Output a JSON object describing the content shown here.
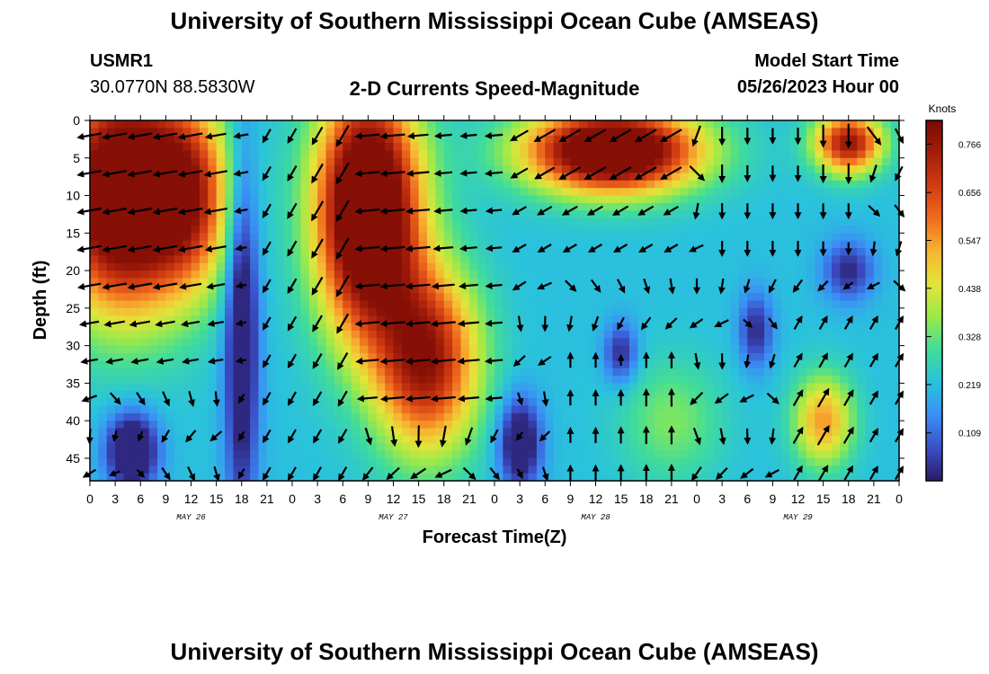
{
  "header": {
    "title": "University of Southern Mississippi Ocean Cube (AMSEAS)",
    "station": "USMR1",
    "coords": "30.0770N  88.5830W",
    "subtitle": "2-D Currents Speed-Magnitude",
    "model_start_label": "Model Start Time",
    "model_start_value": "05/26/2023 Hour 00",
    "footer_title": "University of Southern Mississippi Ocean Cube (AMSEAS)"
  },
  "colors": {
    "colormap": [
      "#2b1a66",
      "#3b4fc7",
      "#3a8ff5",
      "#2ac2dc",
      "#41dc99",
      "#9ae94a",
      "#e3e43a",
      "#f7b531",
      "#ef6d1e",
      "#d13d12",
      "#a51e0a",
      "#7a0a04"
    ]
  },
  "chart_data": {
    "type": "heatmap",
    "title": "2-D Currents Speed-Magnitude",
    "xlabel": "Forecast Time(Z)",
    "ylabel": "Depth (ft)",
    "x_ticks": [
      "0",
      "3",
      "6",
      "9",
      "12",
      "15",
      "18",
      "21",
      "0",
      "3",
      "6",
      "9",
      "12",
      "15",
      "18",
      "21",
      "0",
      "3",
      "6",
      "9",
      "12",
      "15",
      "18",
      "21",
      "0",
      "3",
      "6",
      "9",
      "12",
      "15",
      "18",
      "21",
      "0"
    ],
    "x_range_hours": [
      0,
      96
    ],
    "day_labels": [
      {
        "label": "MAY 26",
        "hour": 12
      },
      {
        "label": "MAY 27",
        "hour": 36
      },
      {
        "label": "MAY 28",
        "hour": 60
      },
      {
        "label": "MAY 29",
        "hour": 84
      }
    ],
    "y_ticks": [
      0,
      5,
      10,
      15,
      20,
      25,
      30,
      35,
      40,
      45
    ],
    "y_range_ft": [
      0,
      48
    ],
    "colorbar": {
      "label": "Knots",
      "ticks": [
        "0.766",
        "0.656",
        "0.547",
        "0.438",
        "0.328",
        "0.219",
        "0.109"
      ],
      "range": [
        0,
        0.82
      ]
    },
    "speed_blobs_knots": [
      {
        "hour": 4,
        "depth": 10,
        "sx": 8,
        "sy": 15,
        "amp": 0.8
      },
      {
        "hour": 12,
        "depth": 10,
        "sx": 5,
        "sy": 12,
        "amp": 0.35
      },
      {
        "hour": 33,
        "depth": 12,
        "sx": 6,
        "sy": 16,
        "amp": 0.85
      },
      {
        "hour": 40,
        "depth": 32,
        "sx": 6,
        "sy": 12,
        "amp": 0.55
      },
      {
        "hour": 62,
        "depth": 4,
        "sx": 10,
        "sy": 5.5,
        "amp": 0.8
      },
      {
        "hour": 90,
        "depth": 3,
        "sx": 4,
        "sy": 4,
        "amp": 0.55
      },
      {
        "hour": 87,
        "depth": 40,
        "sx": 3.5,
        "sy": 6,
        "amp": 0.33
      },
      {
        "hour": 69,
        "depth": 40,
        "sx": 6,
        "sy": 8,
        "amp": 0.13
      }
    ],
    "slow_spots_knots": [
      {
        "hour": 18,
        "depth": 28,
        "sx": 2,
        "sy": 25,
        "amp": -0.3
      },
      {
        "hour": 5,
        "depth": 44,
        "sx": 3,
        "sy": 5,
        "amp": -0.35
      },
      {
        "hour": 51,
        "depth": 43,
        "sx": 2.5,
        "sy": 6,
        "amp": -0.3
      },
      {
        "hour": 63,
        "depth": 31,
        "sx": 2,
        "sy": 4,
        "amp": -0.2
      },
      {
        "hour": 79,
        "depth": 28,
        "sx": 2,
        "sy": 5,
        "amp": -0.2
      },
      {
        "hour": 90,
        "depth": 20,
        "sx": 3,
        "sy": 4,
        "amp": -0.2
      }
    ],
    "vector_direction_regimes_deg": [
      {
        "hours": [
          0,
          18
        ],
        "depths": [
          0,
          35
        ],
        "direction": 190
      },
      {
        "hours": [
          18,
          30
        ],
        "depths": [
          0,
          48
        ],
        "direction": 240
      },
      {
        "hours": [
          30,
          50
        ],
        "depths": [
          0,
          40
        ],
        "direction": 185
      },
      {
        "hours": [
          50,
          70
        ],
        "depths": [
          0,
          20
        ],
        "direction": 210
      },
      {
        "hours": [
          55,
          70
        ],
        "depths": [
          30,
          48
        ],
        "direction": 90
      },
      {
        "hours": [
          75,
          90
        ],
        "depths": [
          0,
          20
        ],
        "direction": 270
      },
      {
        "hours": [
          84,
          96
        ],
        "depths": [
          25,
          48
        ],
        "direction": 60
      }
    ],
    "legend": "right colorbar"
  }
}
